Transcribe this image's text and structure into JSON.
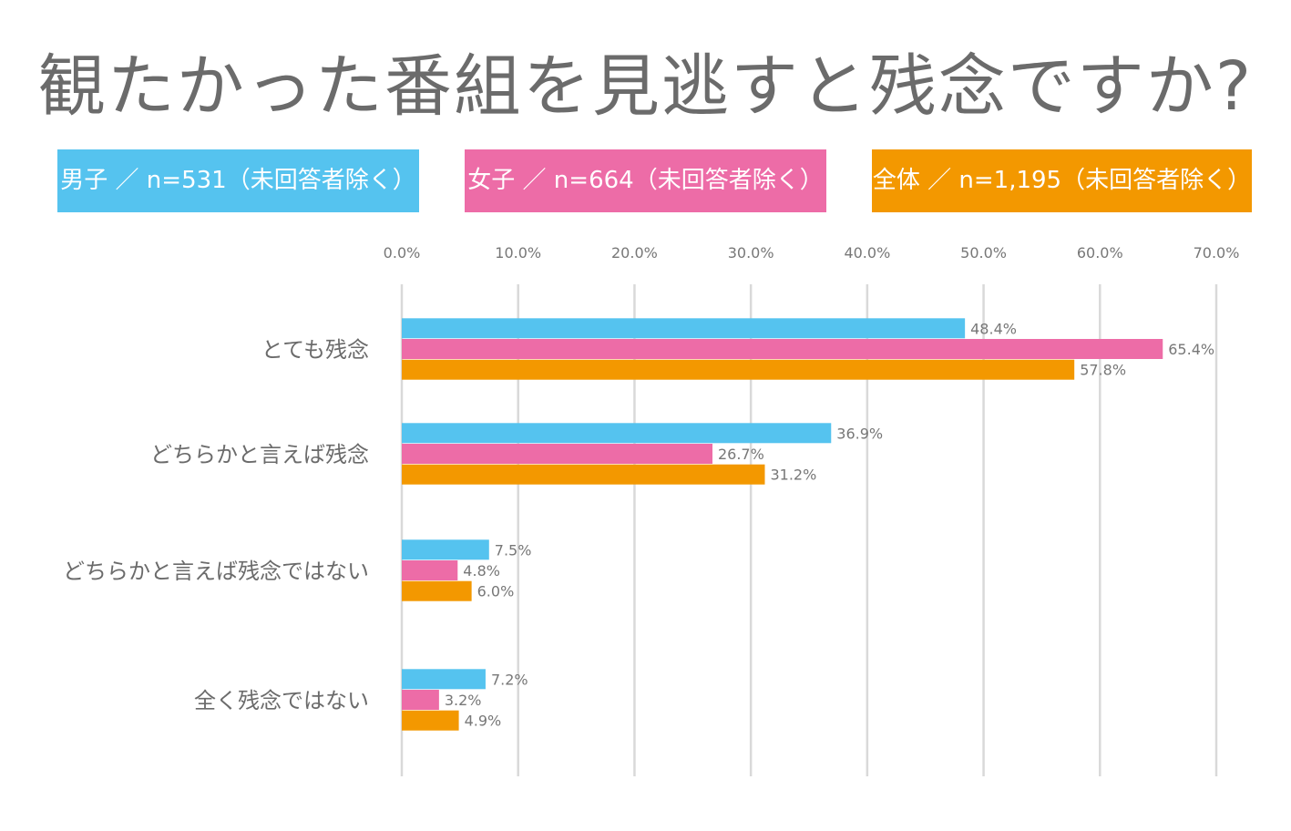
{
  "title": "観たかった番組を見逃すと残念ですか?",
  "legend": [
    {
      "label": "男子 ／ n=531（未回答者除く）",
      "color": "#55c3ef"
    },
    {
      "label": "女子 ／ n=664（未回答者除く）",
      "color": "#ed6ca7"
    },
    {
      "label": "全体 ／ n=1,195（未回答者除く）",
      "color": "#f39800"
    }
  ],
  "chart_data": {
    "type": "bar",
    "orientation": "horizontal",
    "categories": [
      "とても残念",
      "どちらかと言えば残念",
      "どちらかと言えば残念ではない",
      "全く残念ではない"
    ],
    "series": [
      {
        "name": "男子 ／ n=531（未回答者除く）",
        "color": "#55c3ef",
        "values": [
          48.4,
          36.9,
          7.5,
          7.2
        ],
        "labels": [
          "48.4%",
          "36.9%",
          "7.5%",
          "7.2%"
        ]
      },
      {
        "name": "女子 ／ n=664（未回答者除く）",
        "color": "#ed6ca7",
        "values": [
          65.4,
          26.7,
          4.8,
          3.2
        ],
        "labels": [
          "65.4%",
          "26.7%",
          "4.8%",
          "3.2%"
        ]
      },
      {
        "name": "全体 ／ n=1,195（未回答者除く）",
        "color": "#f39800",
        "values": [
          57.8,
          31.2,
          6.0,
          4.9
        ],
        "labels": [
          "57.8%",
          "31.2%",
          "6.0%",
          "4.9%"
        ]
      }
    ],
    "xlim": [
      0,
      70
    ],
    "xticks": [
      "0.0%",
      "10.0%",
      "20.0%",
      "30.0%",
      "40.0%",
      "50.0%",
      "60.0%",
      "70.0%"
    ],
    "axis_position": "top",
    "grid": true,
    "legend_position": "top"
  }
}
